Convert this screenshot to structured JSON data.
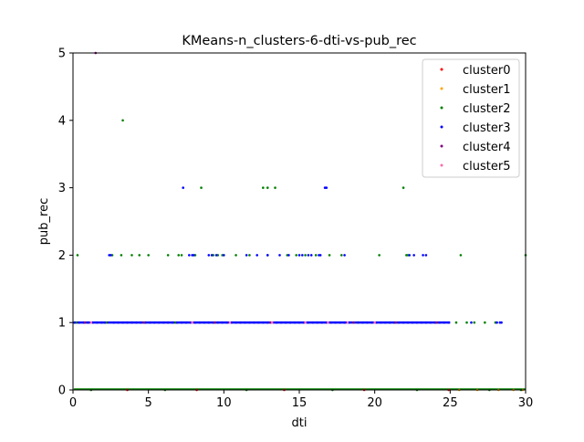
{
  "chart_data": {
    "type": "scatter",
    "title": "KMeans-n_clusters-6-dti-vs-pub_rec",
    "xlabel": "dti",
    "ylabel": "pub_rec",
    "xlim": [
      0,
      30
    ],
    "ylim": [
      0,
      5
    ],
    "xticks": [
      0,
      5,
      10,
      15,
      20,
      25,
      30
    ],
    "yticks": [
      0,
      1,
      2,
      3,
      4,
      5
    ],
    "grid": false,
    "legend_position": "upper-right",
    "series": [
      {
        "name": "cluster0",
        "color": "#ff0000",
        "x": [
          3.6,
          8.2,
          14.0,
          19.3,
          24.9
        ],
        "y": [
          0,
          0,
          0,
          0,
          0
        ]
      },
      {
        "name": "cluster1",
        "color": "#ffa500",
        "x": [
          25.6,
          26.8,
          28.2,
          29.2,
          29.8
        ],
        "y": [
          0,
          0,
          0,
          0,
          0
        ]
      },
      {
        "name": "cluster2",
        "color": "#008000",
        "x": [
          3.3,
          8.5,
          12.6,
          12.9,
          13.4,
          21.9,
          0.3,
          2.6,
          3.2,
          3.9,
          4.4,
          5.0,
          6.3,
          7.0,
          7.2,
          8.1,
          9.3,
          9.6,
          9.9,
          10.8,
          11.7,
          12.9,
          14.2,
          14.8,
          15.4,
          16.1,
          17.0,
          17.8,
          20.3,
          22.1,
          22.2,
          25.7,
          30.0,
          0.2,
          2.2,
          6.8,
          18.9,
          25.4,
          26.1,
          26.6,
          27.3,
          28.0,
          1.2,
          6.1,
          11.5,
          17.2,
          22.8,
          27.6,
          29.7
        ],
        "y": [
          4,
          3,
          3,
          3,
          3,
          3,
          2,
          2,
          2,
          2,
          2,
          2,
          2,
          2,
          2,
          2,
          2,
          2,
          2,
          2,
          2,
          2,
          2,
          2,
          2,
          2,
          2,
          2,
          2,
          2,
          2,
          2,
          2,
          1,
          1,
          1,
          1,
          1,
          1,
          1,
          1,
          1,
          0,
          0,
          0,
          0,
          0,
          0,
          0
        ]
      },
      {
        "name": "cluster3",
        "color": "#0000ff",
        "x": [
          7.3,
          16.7,
          16.8,
          2.4,
          2.5,
          7.7,
          7.9,
          8.0,
          9.0,
          9.2,
          9.5,
          10.0,
          11.5,
          12.2,
          12.9,
          13.7,
          14.3,
          15.0,
          15.2,
          15.6,
          15.8,
          16.3,
          16.4,
          18.0,
          22.3,
          22.6,
          23.2,
          23.4,
          0.1,
          0.4,
          0.7,
          1.0,
          1.3,
          1.6,
          1.9,
          2.1,
          2.7,
          3.0,
          3.3,
          3.6,
          3.9,
          4.2,
          4.5,
          4.8,
          5.1,
          5.4,
          5.7,
          6.0,
          6.3,
          6.6,
          6.9,
          7.2,
          7.5,
          7.8,
          8.1,
          8.4,
          8.7,
          9.0,
          9.3,
          9.6,
          9.9,
          10.2,
          10.5,
          10.8,
          11.1,
          11.4,
          11.7,
          12.0,
          12.3,
          12.6,
          12.9,
          13.2,
          13.5,
          13.8,
          14.1,
          14.4,
          14.7,
          15.0,
          15.3,
          15.6,
          15.9,
          16.2,
          16.5,
          16.8,
          17.1,
          17.4,
          17.7,
          18.0,
          18.3,
          18.6,
          18.9,
          19.2,
          19.5,
          19.8,
          20.1,
          20.4,
          20.7,
          21.0,
          21.3,
          21.6,
          21.9,
          22.2,
          22.5,
          22.8,
          23.1,
          23.4,
          23.7,
          24.0,
          24.3,
          24.6,
          24.9,
          26.4,
          28.1,
          28.3,
          28.4
        ],
        "y": [
          3,
          3,
          3,
          2,
          2,
          2,
          2,
          2,
          2,
          2,
          2,
          2,
          2,
          2,
          2,
          2,
          2,
          2,
          2,
          2,
          2,
          2,
          2,
          2,
          2,
          2,
          2,
          2,
          1,
          1,
          1,
          1,
          1,
          1,
          1,
          1,
          1,
          1,
          1,
          1,
          1,
          1,
          1,
          1,
          1,
          1,
          1,
          1,
          1,
          1,
          1,
          1,
          1,
          1,
          1,
          1,
          1,
          1,
          1,
          1,
          1,
          1,
          1,
          1,
          1,
          1,
          1,
          1,
          1,
          1,
          1,
          1,
          1,
          1,
          1,
          1,
          1,
          1,
          1,
          1,
          1,
          1,
          1,
          1,
          1,
          1,
          1,
          1,
          1,
          1,
          1,
          1,
          1,
          1,
          1,
          1,
          1,
          1,
          1,
          1,
          1,
          1,
          1,
          1,
          1,
          1,
          1,
          1,
          1,
          1,
          1,
          1,
          1,
          1,
          1
        ]
      },
      {
        "name": "cluster4",
        "color": "#800080",
        "x": [
          1.5,
          0.8,
          4.7,
          9.4,
          13.1,
          18.6,
          21.4,
          24.1
        ],
        "y": [
          5,
          1,
          1,
          1,
          1,
          1,
          1,
          1
        ]
      },
      {
        "name": "cluster5",
        "color": "#ff69b4",
        "x": [
          1.2,
          7.9,
          10.4,
          13.2,
          15.4,
          16.9,
          18.2,
          20.0
        ],
        "y": [
          1,
          1,
          1,
          1,
          1,
          1,
          1,
          1
        ]
      }
    ]
  }
}
